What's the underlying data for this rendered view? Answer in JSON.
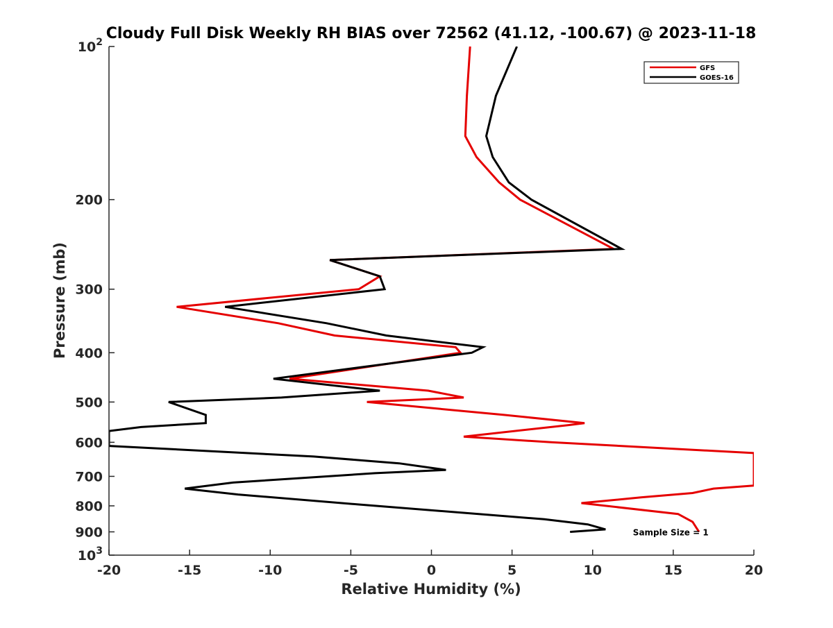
{
  "chart_data": {
    "type": "line",
    "title": "Cloudy Full Disk Weekly RH BIAS over 72562 (41.12, -100.67) @ 2023-11-18",
    "xlabel": "Relative Humidity (%)",
    "ylabel": "Pressure (mb)",
    "xlim": [
      -20,
      20
    ],
    "ylim": [
      100,
      1000
    ],
    "y_scale": "log",
    "y_reversed": true,
    "x_ticks": [
      "-20",
      "-15",
      "-10",
      "-5",
      "0",
      "5",
      "10",
      "15",
      "20"
    ],
    "y_ticks": [
      {
        "value": 100,
        "base": "10",
        "exp": "2"
      },
      {
        "value": 200,
        "label": "200"
      },
      {
        "value": 300,
        "label": "300"
      },
      {
        "value": 400,
        "label": "400"
      },
      {
        "value": 500,
        "label": "500"
      },
      {
        "value": 600,
        "label": "600"
      },
      {
        "value": 700,
        "label": "700"
      },
      {
        "value": 800,
        "label": "800"
      },
      {
        "value": 900,
        "label": "900"
      },
      {
        "value": 1000,
        "base": "10",
        "exp": "3"
      }
    ],
    "grid": false,
    "legend_position": "top-right",
    "series": [
      {
        "name": "GFS",
        "color": "#e50000",
        "points": [
          [
            2.4,
            100
          ],
          [
            2.2,
            125
          ],
          [
            2.1,
            150
          ],
          [
            2.8,
            165
          ],
          [
            4.2,
            185
          ],
          [
            5.5,
            200
          ],
          [
            11.3,
            250
          ],
          [
            -6.3,
            263
          ],
          [
            -3.2,
            283
          ],
          [
            -4.5,
            300
          ],
          [
            -15.8,
            325
          ],
          [
            -9.5,
            350
          ],
          [
            -6.0,
            370
          ],
          [
            1.5,
            390
          ],
          [
            1.8,
            400
          ],
          [
            -8.8,
            450
          ],
          [
            -0.2,
            475
          ],
          [
            2.0,
            490
          ],
          [
            -4.0,
            500
          ],
          [
            4.5,
            530
          ],
          [
            9.5,
            550
          ],
          [
            8.5,
            555
          ],
          [
            2.0,
            585
          ],
          [
            7.5,
            600
          ],
          [
            20.0,
            630
          ],
          [
            20.0,
            730
          ],
          [
            17.5,
            740
          ],
          [
            16.2,
            755
          ],
          [
            13.0,
            770
          ],
          [
            9.3,
            790
          ],
          [
            15.3,
            830
          ],
          [
            16.2,
            860
          ],
          [
            16.6,
            900
          ]
        ]
      },
      {
        "name": "GOES-16",
        "color": "#000000",
        "points": [
          [
            5.3,
            100
          ],
          [
            4.0,
            125
          ],
          [
            3.4,
            150
          ],
          [
            3.8,
            165
          ],
          [
            4.8,
            185
          ],
          [
            6.2,
            200
          ],
          [
            11.8,
            250
          ],
          [
            -6.3,
            263
          ],
          [
            -3.2,
            283
          ],
          [
            -2.9,
            300
          ],
          [
            -12.8,
            325
          ],
          [
            -6.5,
            350
          ],
          [
            -2.8,
            370
          ],
          [
            3.2,
            390
          ],
          [
            2.5,
            400
          ],
          [
            -9.8,
            450
          ],
          [
            -3.2,
            475
          ],
          [
            -9.3,
            490
          ],
          [
            -16.3,
            500
          ],
          [
            -14.0,
            530
          ],
          [
            -14.0,
            550
          ],
          [
            -18.0,
            560
          ],
          [
            -20.0,
            570
          ],
          [
            -20.0,
            610
          ],
          [
            -7.3,
            640
          ],
          [
            -2.0,
            660
          ],
          [
            0.9,
            680
          ],
          [
            -3.5,
            690
          ],
          [
            -12.3,
            720
          ],
          [
            -15.3,
            740
          ],
          [
            -12.0,
            760
          ],
          [
            -4.5,
            795
          ],
          [
            7.0,
            850
          ],
          [
            9.7,
            870
          ],
          [
            10.8,
            890
          ],
          [
            8.6,
            900
          ]
        ]
      }
    ],
    "annotations": [
      {
        "text": "Sample Size = 1",
        "x": 12.5,
        "y": 900
      }
    ]
  }
}
